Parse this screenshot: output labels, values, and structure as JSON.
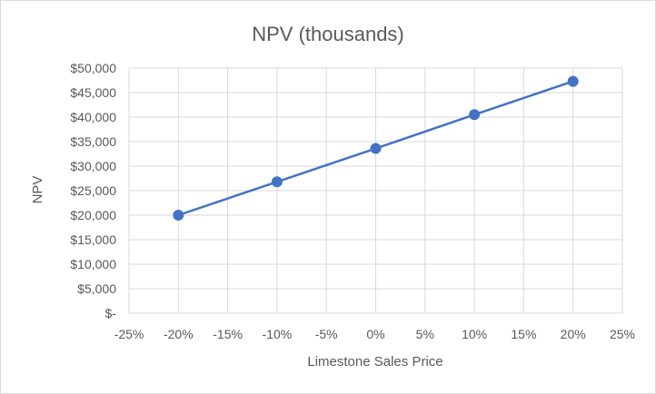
{
  "chart_data": {
    "type": "scatter",
    "title": "NPV (thousands)",
    "xlabel": "Limestone Sales Price",
    "ylabel": "NPV",
    "xlim": [
      -0.25,
      0.25
    ],
    "ylim": [
      0,
      50000
    ],
    "x_tick_values": [
      -0.25,
      -0.2,
      -0.15,
      -0.1,
      -0.05,
      0,
      0.05,
      0.1,
      0.15,
      0.2,
      0.25
    ],
    "x_tick_labels": [
      "-25%",
      "-20%",
      "-15%",
      "-10%",
      "-5%",
      "0%",
      "5%",
      "10%",
      "15%",
      "20%",
      "25%"
    ],
    "y_tick_values": [
      0,
      5000,
      10000,
      15000,
      20000,
      25000,
      30000,
      35000,
      40000,
      45000,
      50000
    ],
    "y_tick_labels": [
      "$-",
      "$5,000",
      "$10,000",
      "$15,000",
      "$20,000",
      "$25,000",
      "$30,000",
      "$35,000",
      "$40,000",
      "$45,000",
      "$50,000"
    ],
    "grid": true,
    "legend": "none",
    "series": [
      {
        "x": [
          -0.2,
          -0.1,
          0,
          0.1,
          0.2
        ],
        "y": [
          20000,
          26800,
          33600,
          40500,
          47300
        ],
        "color": "#4472c4",
        "line": true,
        "markers": true
      }
    ]
  }
}
